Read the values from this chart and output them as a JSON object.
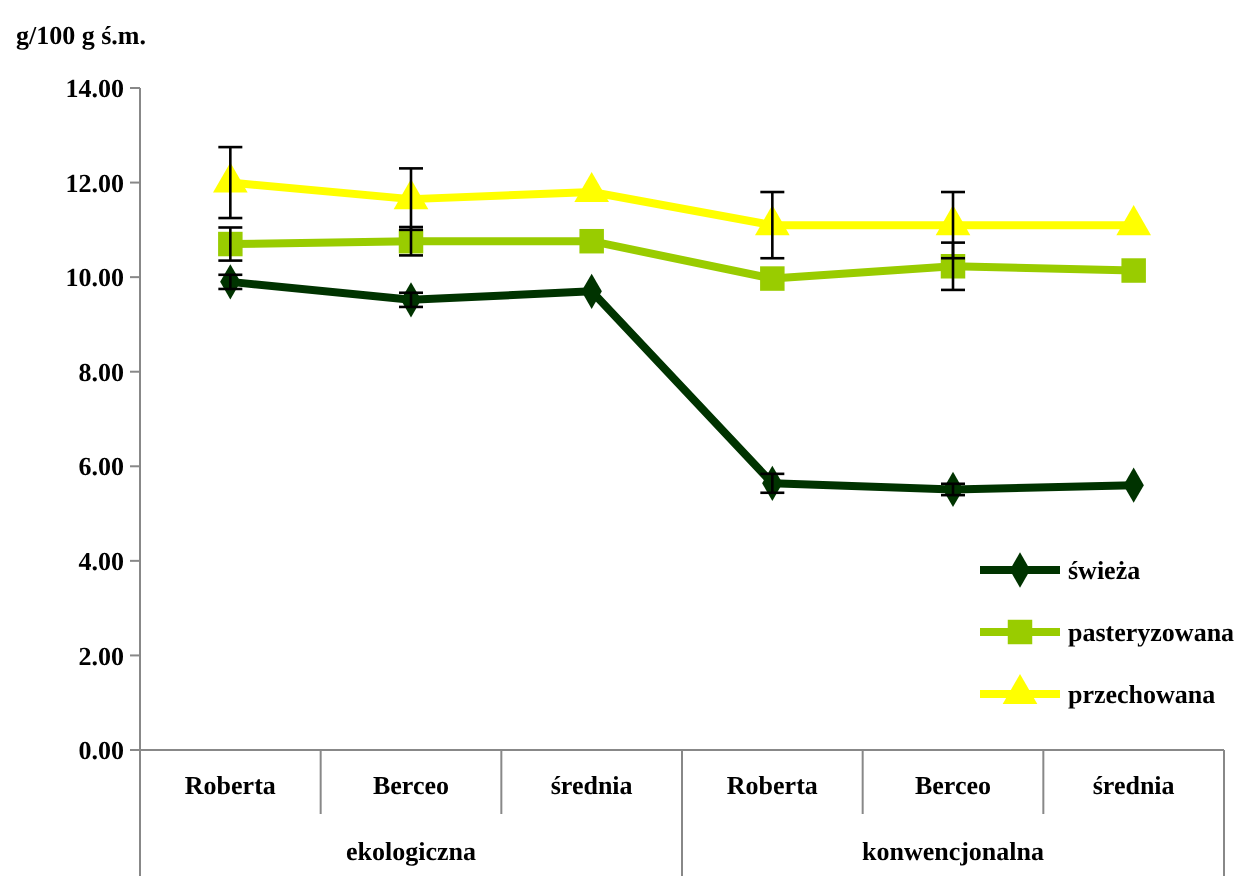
{
  "chart_data": {
    "type": "line",
    "ylabel": "g/100 g ś.m.",
    "categories": [
      "Roberta",
      "Berceo",
      "średnia",
      "Roberta",
      "Berceo",
      "średnia"
    ],
    "annotations": [
      "ekologiczna",
      "konwencjonalna"
    ],
    "series": [
      {
        "name": "świeża",
        "color": "#003300",
        "marker": "diamond",
        "values": [
          9.9,
          9.52,
          9.7,
          5.64,
          5.51,
          5.6
        ],
        "errors": [
          0.15,
          0.15,
          null,
          0.2,
          0.12,
          null
        ]
      },
      {
        "name": "pasteryzowana",
        "color": "#99cc00",
        "marker": "square",
        "values": [
          10.7,
          10.76,
          10.76,
          9.97,
          10.23,
          10.14
        ],
        "errors": [
          0.35,
          0.3,
          null,
          null,
          0.5,
          null
        ]
      },
      {
        "name": "przechowana",
        "color": "#ffff00",
        "marker": "triangle",
        "values": [
          12.0,
          11.65,
          11.8,
          11.1,
          11.1,
          11.1
        ],
        "errors": [
          0.75,
          0.65,
          null,
          0.7,
          0.7,
          null
        ]
      }
    ],
    "ylim": [
      0,
      14
    ],
    "yticks": [
      {
        "value": 0,
        "label": "0.00"
      },
      {
        "value": 2,
        "label": "2.00"
      },
      {
        "value": 4,
        "label": "4.00"
      },
      {
        "value": 6,
        "label": "6.00"
      },
      {
        "value": 8,
        "label": "8.00"
      },
      {
        "value": 10,
        "label": "10.00"
      },
      {
        "value": 12,
        "label": "12.00"
      },
      {
        "value": 14,
        "label": "14.00"
      }
    ],
    "grid": false,
    "legend": "bottom right"
  }
}
